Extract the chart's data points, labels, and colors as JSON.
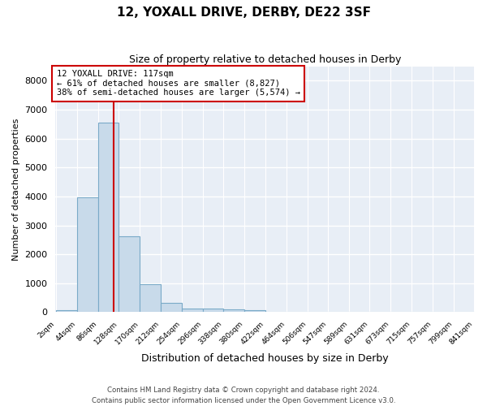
{
  "title": "12, YOXALL DRIVE, DERBY, DE22 3SF",
  "subtitle": "Size of property relative to detached houses in Derby",
  "xlabel": "Distribution of detached houses by size in Derby",
  "ylabel": "Number of detached properties",
  "bar_color": "#c8daea",
  "bar_edge_color": "#7aaac8",
  "background_color": "#e8eef6",
  "grid_color": "#ffffff",
  "bin_edges": [
    2,
    44,
    86,
    128,
    170,
    212,
    254,
    296,
    338,
    380,
    422,
    464,
    506,
    547,
    589,
    631,
    673,
    715,
    757,
    799,
    841
  ],
  "bin_labels": [
    "2sqm",
    "44sqm",
    "86sqm",
    "128sqm",
    "170sqm",
    "212sqm",
    "254sqm",
    "296sqm",
    "338sqm",
    "380sqm",
    "422sqm",
    "464sqm",
    "506sqm",
    "547sqm",
    "589sqm",
    "631sqm",
    "673sqm",
    "715sqm",
    "757sqm",
    "799sqm",
    "841sqm"
  ],
  "values": [
    70,
    3970,
    6560,
    2620,
    960,
    310,
    130,
    130,
    90,
    60,
    0,
    0,
    0,
    0,
    0,
    0,
    0,
    0,
    0,
    0
  ],
  "property_size": 117,
  "vline_color": "#cc0000",
  "annotation_text": "12 YOXALL DRIVE: 117sqm\n← 61% of detached houses are smaller (8,827)\n38% of semi-detached houses are larger (5,574) →",
  "annotation_box_color": "#ffffff",
  "annotation_box_edge": "#cc0000",
  "ylim": [
    0,
    8500
  ],
  "yticks": [
    0,
    1000,
    2000,
    3000,
    4000,
    5000,
    6000,
    7000,
    8000
  ],
  "footer_line1": "Contains HM Land Registry data © Crown copyright and database right 2024.",
  "footer_line2": "Contains public sector information licensed under the Open Government Licence v3.0."
}
